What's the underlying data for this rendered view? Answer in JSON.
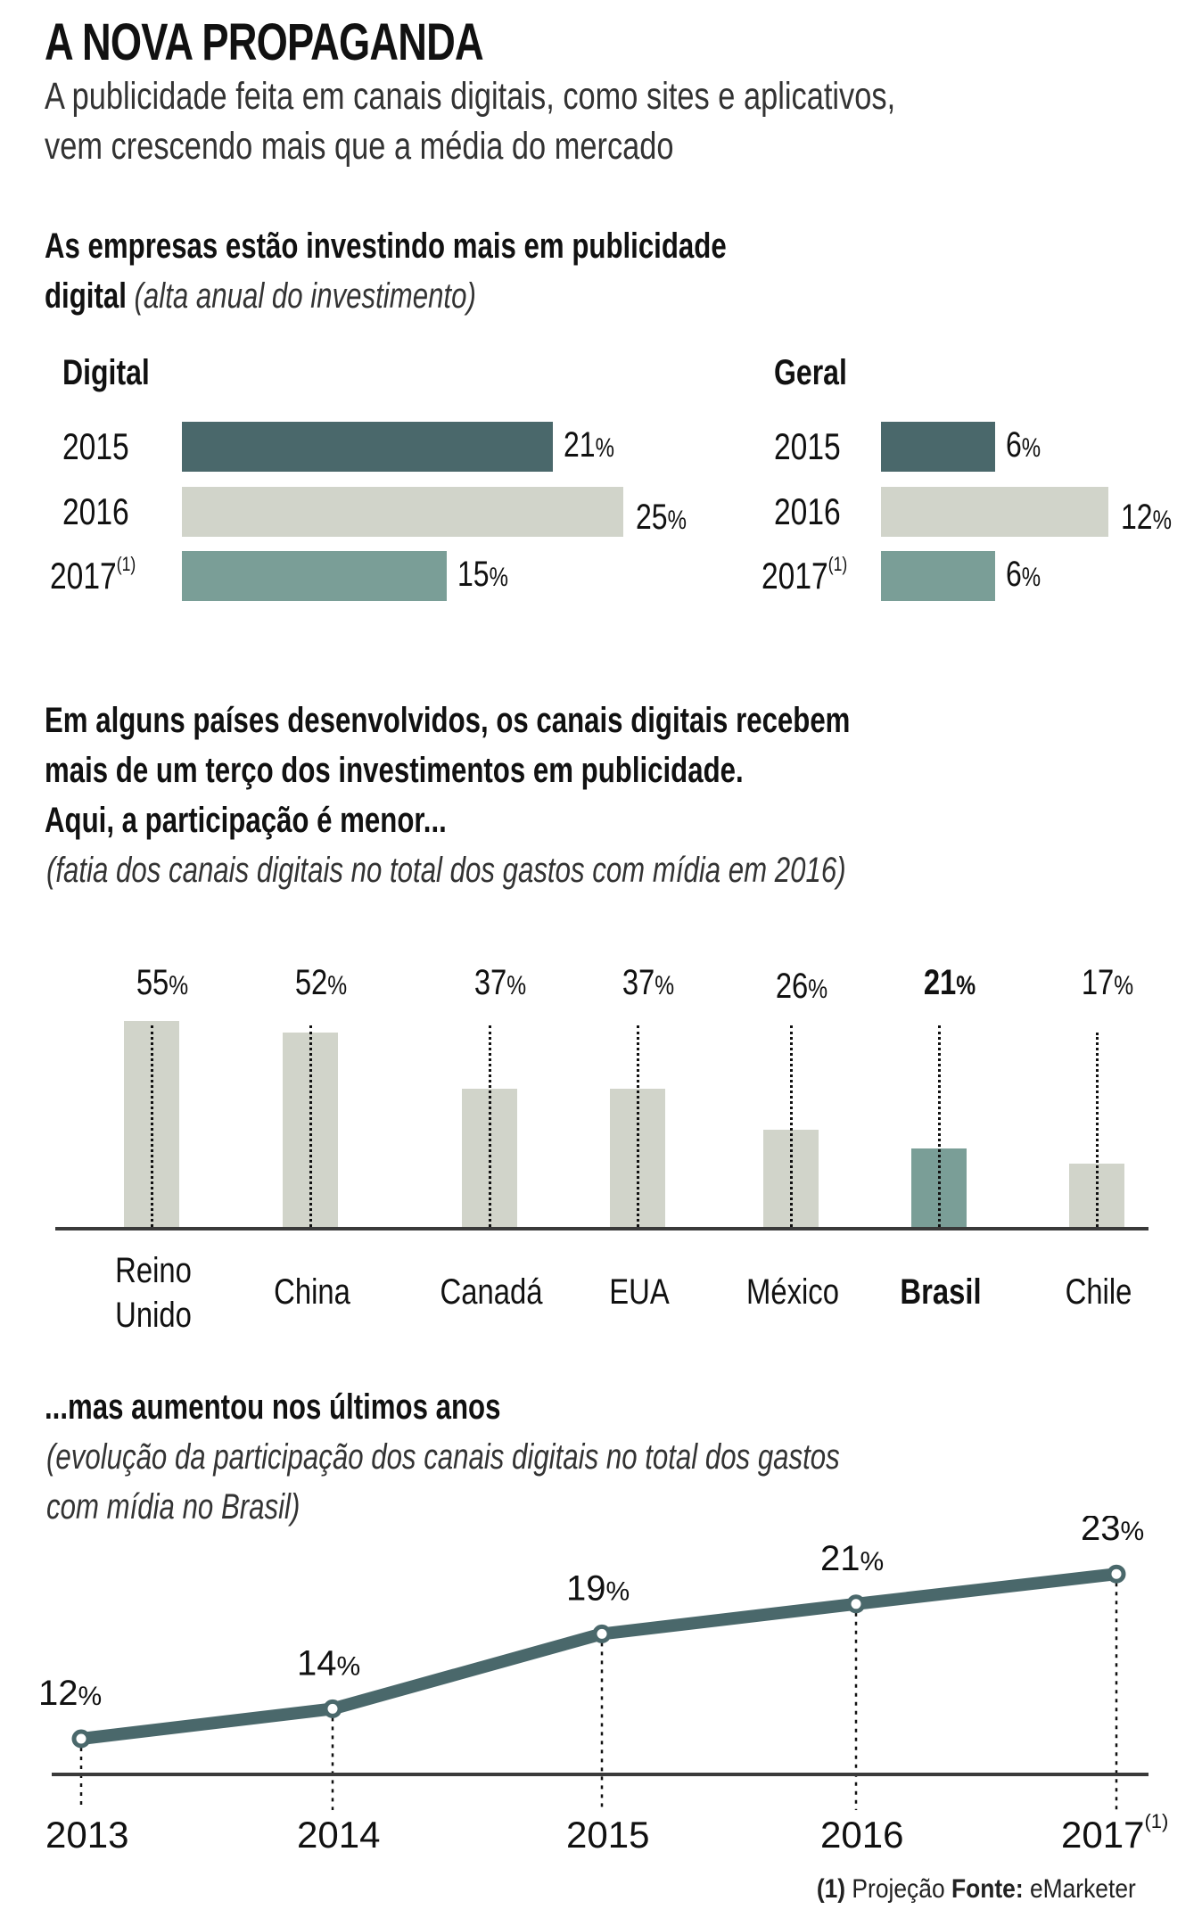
{
  "header": {
    "title": "A NOVA PROPAGANDA",
    "subtitle_line1": "A publicidade feita em canais digitais, como sites e aplicativos,",
    "subtitle_line2": "vem crescendo mais que a média do mercado"
  },
  "colors": {
    "dark_teal": "#4a686b",
    "light_gray": "#d1d4ca",
    "mid_teal": "#7a9e97",
    "axis": "#3a3a3a",
    "text": "#111111"
  },
  "section1": {
    "heading_line1": "As empresas estão investindo mais em publicidade",
    "heading_line2_bold": "digital",
    "heading_line2_italic": "(alta anual do investimento)"
  },
  "section2": {
    "heading_line1": "Em alguns países desenvolvidos, os canais digitais recebem",
    "heading_line2": "mais de um terço dos investimentos em publicidade.",
    "heading_line3": "Aqui, a participação é menor...",
    "italic": "(fatia dos canais digitais no total dos gastos com mídia em 2016)"
  },
  "section3": {
    "heading": "...mas aumentou nos últimos anos",
    "italic_line1": "(evolução da participação dos canais digitais no total dos gastos",
    "italic_line2": "com mídia no Brasil)"
  },
  "footer": {
    "note_marker": "(1)",
    "note_text": "Projeção",
    "source_label": "Fonte:",
    "source_value": "eMarketer"
  },
  "chart_data": [
    {
      "type": "bar",
      "orientation": "horizontal",
      "title": "Digital",
      "categories": [
        "2015",
        "2016",
        "2017"
      ],
      "category_footnotes": [
        "",
        "",
        "(1)"
      ],
      "values": [
        21,
        25,
        15
      ],
      "labels": [
        "21",
        "25",
        "15"
      ],
      "unit": "%",
      "bar_colors": [
        "#4a686b",
        "#d1d4ca",
        "#7a9e97"
      ]
    },
    {
      "type": "bar",
      "orientation": "horizontal",
      "title": "Geral",
      "categories": [
        "2015",
        "2016",
        "2017"
      ],
      "category_footnotes": [
        "",
        "",
        "(1)"
      ],
      "values": [
        6,
        12,
        6
      ],
      "labels": [
        "6",
        "12",
        "6"
      ],
      "unit": "%",
      "bar_colors": [
        "#4a686b",
        "#d1d4ca",
        "#7a9e97"
      ]
    },
    {
      "type": "bar",
      "orientation": "vertical",
      "title": "fatia dos canais digitais no total dos gastos com mídia em 2016",
      "categories": [
        "Reino Unido",
        "China",
        "Canadá",
        "EUA",
        "México",
        "Brasil",
        "Chile"
      ],
      "category_lines": [
        [
          "Reino",
          "Unido"
        ],
        [
          "China"
        ],
        [
          "Canadá"
        ],
        [
          "EUA"
        ],
        [
          "México"
        ],
        [
          "Brasil"
        ],
        [
          "Chile"
        ]
      ],
      "values": [
        55,
        52,
        37,
        37,
        26,
        21,
        17
      ],
      "labels": [
        "55",
        "52",
        "37",
        "37",
        "26",
        "21",
        "17"
      ],
      "unit": "%",
      "highlight": "Brasil",
      "ylim": [
        0,
        60
      ],
      "grid": false
    },
    {
      "type": "line",
      "title": "evolução da participação dos canais digitais no total dos gastos com mídia no Brasil",
      "x": [
        "2013",
        "2014",
        "2015",
        "2016",
        "2017"
      ],
      "x_footnotes": [
        "",
        "",
        "",
        "",
        "(1)"
      ],
      "values": [
        12,
        14,
        19,
        21,
        23
      ],
      "labels": [
        "12",
        "14",
        "19",
        "21",
        "23"
      ],
      "unit": "%",
      "grid": false
    }
  ]
}
